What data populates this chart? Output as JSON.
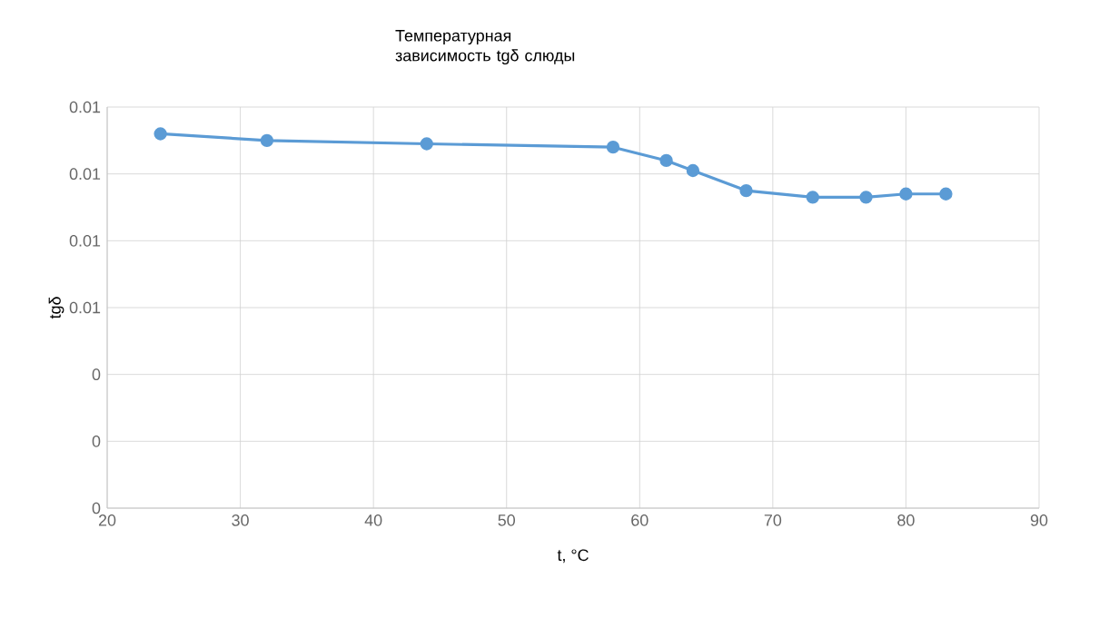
{
  "chart_data": {
    "type": "line",
    "title": "Температурная зависимость tgδ слюды",
    "xlabel": "t, °C",
    "ylabel": "tgδ",
    "x": [
      24,
      32,
      44,
      58,
      62,
      64,
      68,
      73,
      77,
      80,
      83
    ],
    "series": [
      {
        "color": "#5b9bd5",
        "values": [
          0.0112,
          0.011,
          0.0109,
          0.0108,
          0.0104,
          0.0101,
          0.0095,
          0.0093,
          0.0093,
          0.0094,
          0.0094
        ]
      }
    ],
    "xlim": [
      20,
      90
    ],
    "xticks": [
      20,
      30,
      40,
      50,
      60,
      70,
      80,
      90
    ],
    "ylim": [
      0,
      0.012
    ],
    "yticks": [
      {
        "value": 0,
        "label": "0"
      },
      {
        "value": 0.002,
        "label": "0"
      },
      {
        "value": 0.004,
        "label": "0"
      },
      {
        "value": 0.006,
        "label": "0.01"
      },
      {
        "value": 0.008,
        "label": "0.01"
      },
      {
        "value": 0.01,
        "label": "0.01"
      },
      {
        "value": 0.012,
        "label": "0.01"
      }
    ],
    "grid": true,
    "marker": "circle",
    "line_style": "solid"
  }
}
